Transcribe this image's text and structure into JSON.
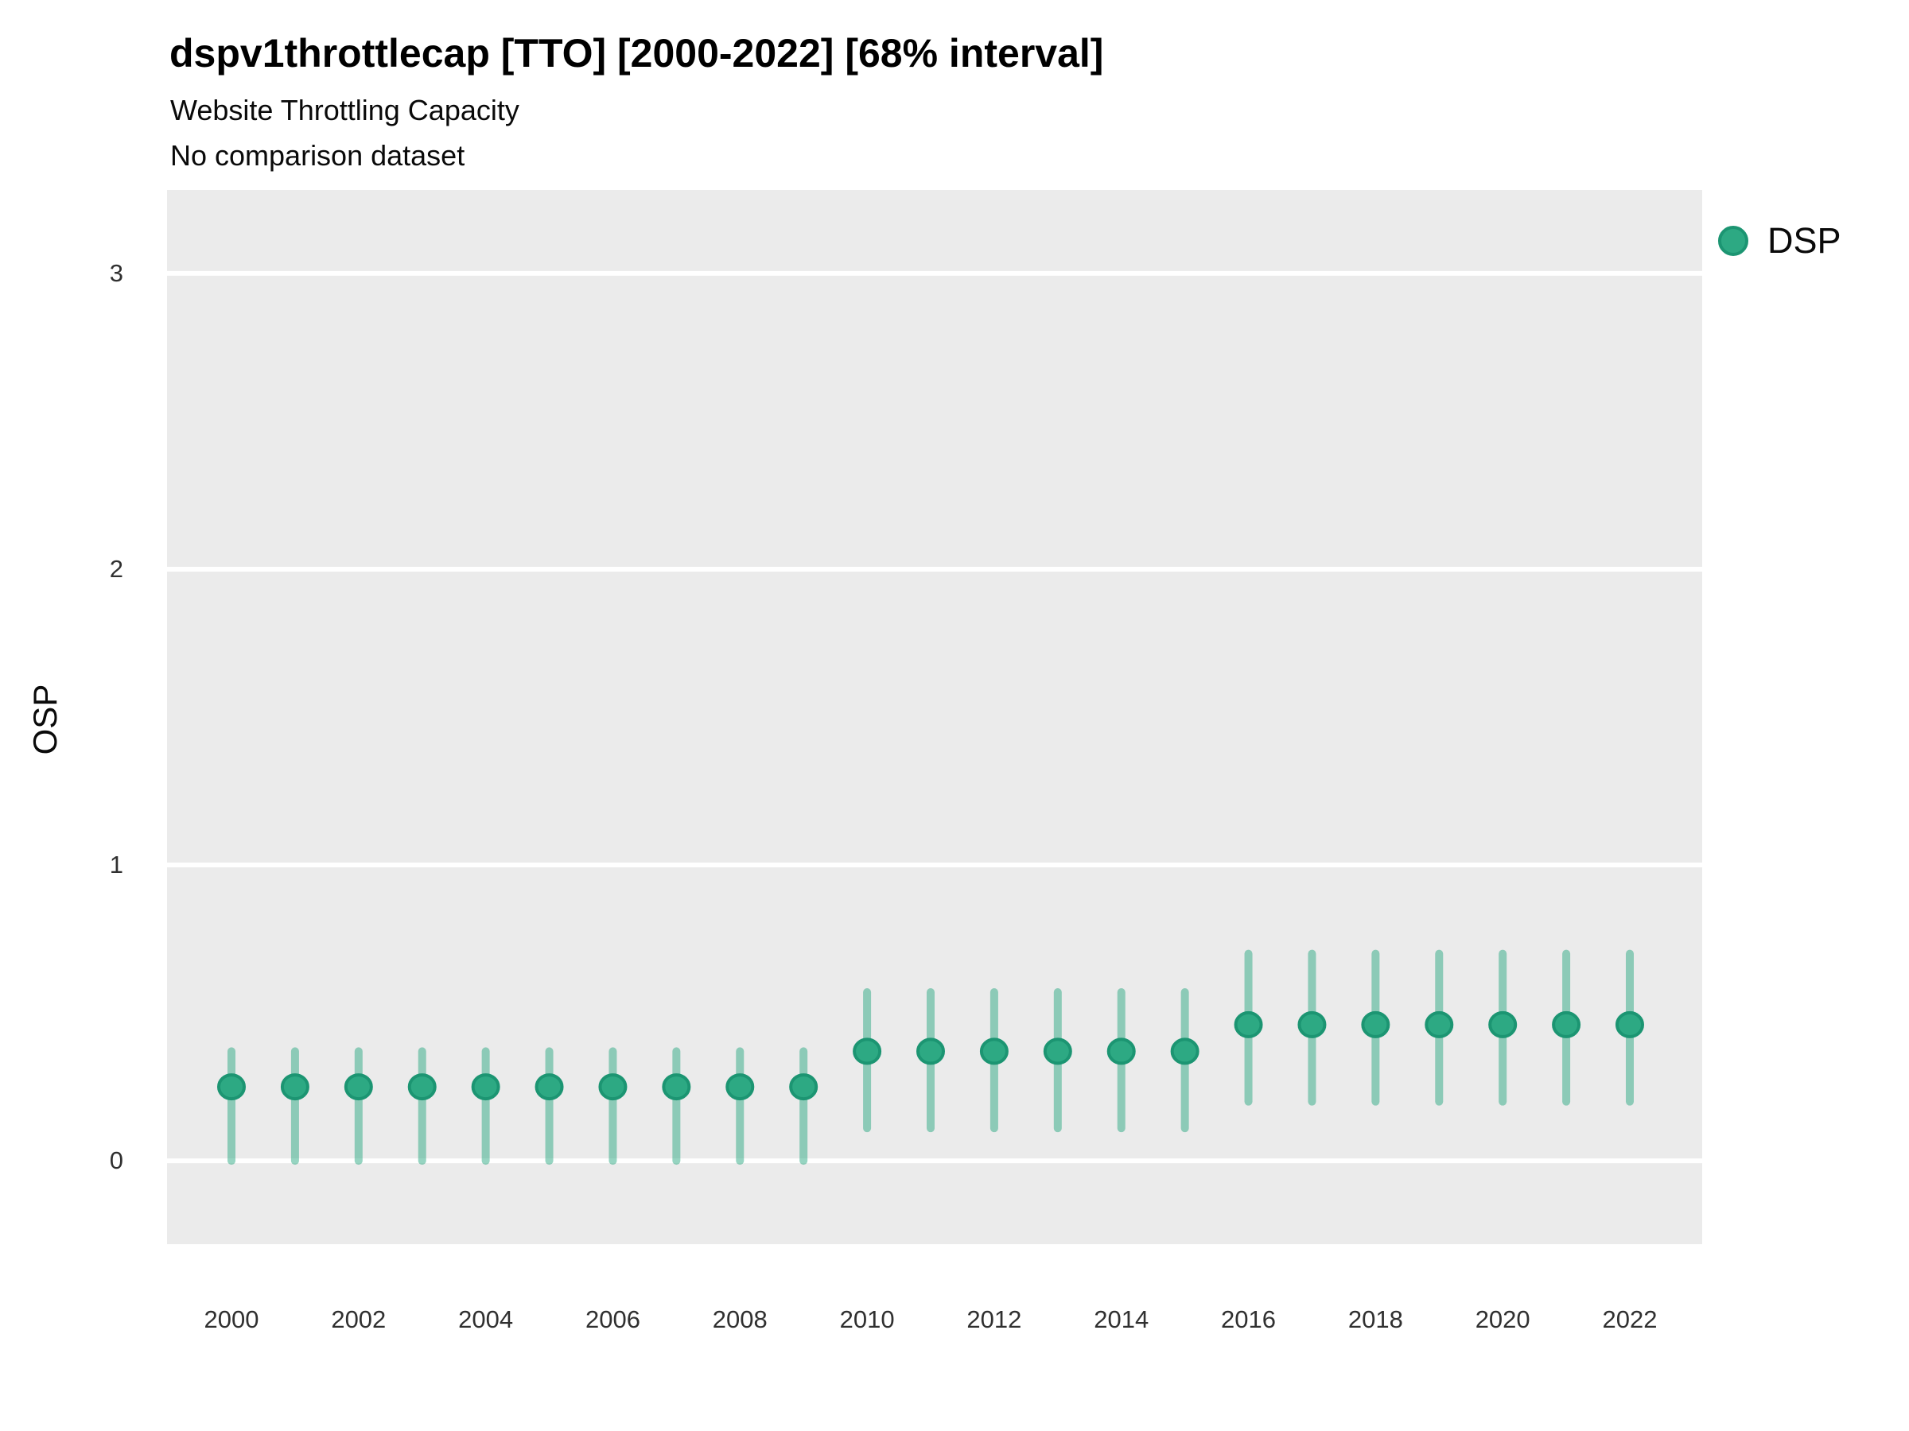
{
  "header": {
    "title": "dspv1throttlecap [TTO] [2000-2022] [68% interval]",
    "subtitle1": "Website Throttling Capacity",
    "subtitle2": "No comparison dataset"
  },
  "chart_data": {
    "type": "pointrange",
    "title": "dspv1throttlecap [TTO] [2000-2022] [68% interval]",
    "subtitle": [
      "Website Throttling Capacity",
      "No comparison dataset"
    ],
    "xlabel": "",
    "ylabel": "OSP",
    "interval_level": "68%",
    "legend_position": "right",
    "grid": "horizontal-major-only",
    "x": [
      2000,
      2001,
      2002,
      2003,
      2004,
      2005,
      2006,
      2007,
      2008,
      2009,
      2010,
      2011,
      2012,
      2013,
      2014,
      2015,
      2016,
      2017,
      2018,
      2019,
      2020,
      2021,
      2022
    ],
    "x_ticks": [
      2000,
      2002,
      2004,
      2006,
      2008,
      2010,
      2012,
      2014,
      2016,
      2018,
      2020,
      2022
    ],
    "y_ticks": [
      0,
      1,
      2,
      3
    ],
    "ylim": [
      -0.282,
      3.282
    ],
    "series": [
      {
        "name": "DSP",
        "median": [
          0.25,
          0.25,
          0.25,
          0.25,
          0.25,
          0.25,
          0.25,
          0.25,
          0.25,
          0.25,
          0.37,
          0.37,
          0.37,
          0.37,
          0.37,
          0.37,
          0.46,
          0.46,
          0.46,
          0.46,
          0.46,
          0.46,
          0.46
        ],
        "interval_low": [
          0,
          0,
          0,
          0,
          0,
          0,
          0,
          0,
          0,
          0,
          0.11,
          0.11,
          0.11,
          0.11,
          0.11,
          0.11,
          0.2,
          0.2,
          0.2,
          0.2,
          0.2,
          0.2,
          0.2
        ],
        "interval_high": [
          0.37,
          0.37,
          0.37,
          0.37,
          0.37,
          0.37,
          0.37,
          0.37,
          0.37,
          0.37,
          0.57,
          0.57,
          0.57,
          0.57,
          0.57,
          0.57,
          0.7,
          0.7,
          0.7,
          0.7,
          0.7,
          0.7,
          0.7
        ]
      }
    ],
    "colors": {
      "point_fill": "#2DA983",
      "point_stroke": "#1C9572",
      "interval_line": "#2DA983",
      "interval_opacity": 0.5,
      "panel_background": "#EBEBEB",
      "gridline": "#FFFFFF",
      "title_text": "#000000",
      "tick_text": "#303030"
    }
  }
}
